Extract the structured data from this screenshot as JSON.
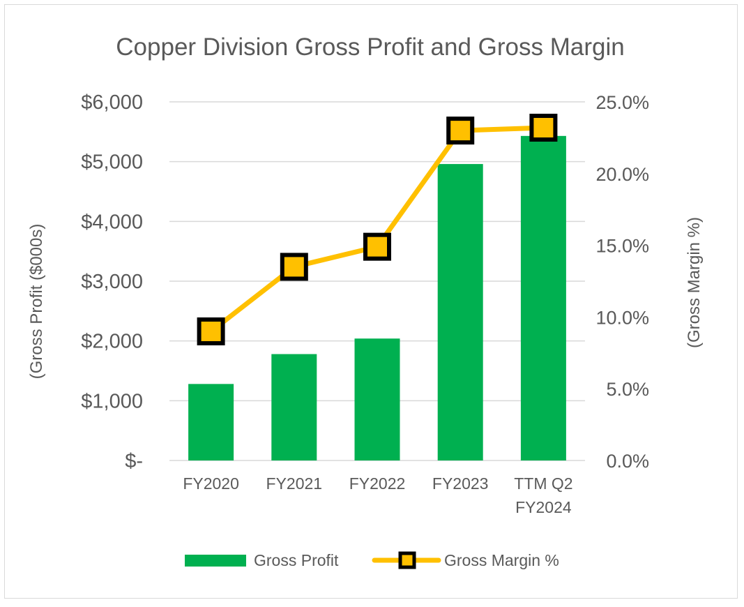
{
  "chart_data": {
    "type": "bar",
    "title": "Copper Division Gross Profit and Gross Margin",
    "categories": [
      "FY2020",
      "FY2021",
      "FY2022",
      "FY2023",
      "TTM Q2 FY2024"
    ],
    "category_lines": [
      [
        "FY2020"
      ],
      [
        "FY2021"
      ],
      [
        "FY2022"
      ],
      [
        "FY2023"
      ],
      [
        "TTM Q2",
        "FY2024"
      ]
    ],
    "series": [
      {
        "name": "Gross Profit",
        "type": "bar",
        "axis": "left",
        "color": "#00b050",
        "values": [
          1280,
          1780,
          2040,
          4960,
          5430
        ]
      },
      {
        "name": "Gross Margin %",
        "type": "line",
        "axis": "right",
        "color": "#ffc000",
        "marker_border": "#000000",
        "values": [
          9.0,
          13.5,
          14.9,
          23.0,
          23.2
        ]
      }
    ],
    "ylabel": "(Gross Profit ($000s)",
    "y2label": "(Gross Margin %)",
    "ylim": [
      0,
      6000
    ],
    "y2lim": [
      0,
      25
    ],
    "yticks": [
      0,
      1000,
      2000,
      3000,
      4000,
      5000,
      6000
    ],
    "ytick_labels": [
      "$-",
      "$1,000",
      "$2,000",
      "$3,000",
      "$4,000",
      "$5,000",
      "$6,000"
    ],
    "y2ticks": [
      0,
      5,
      10,
      15,
      20,
      25
    ],
    "y2tick_labels": [
      "0.0%",
      "5.0%",
      "10.0%",
      "15.0%",
      "20.0%",
      "25.0%"
    ],
    "grid": true,
    "legend_position": "bottom"
  }
}
